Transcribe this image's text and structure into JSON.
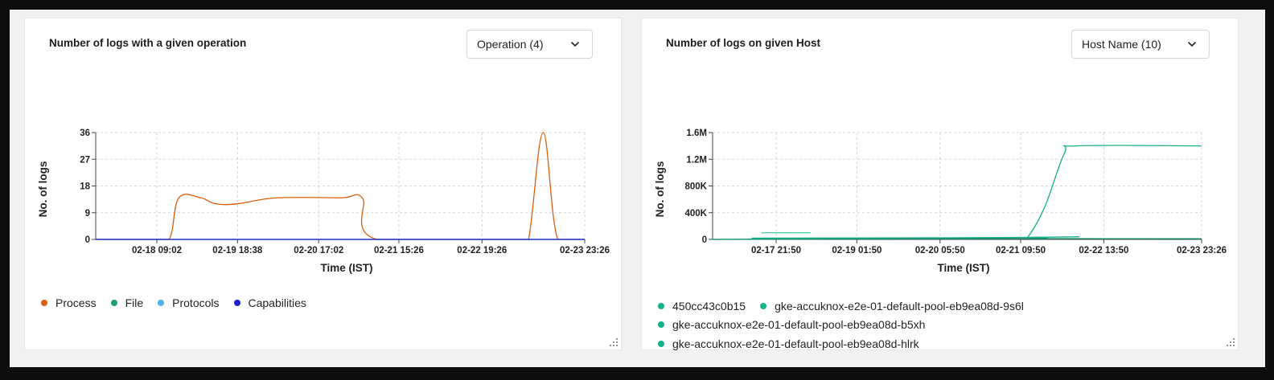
{
  "left_panel": {
    "title": "Number of logs with a given operation",
    "dropdown_label": "Operation (4)",
    "legend": [
      {
        "name": "Process",
        "color": "#d95f0e"
      },
      {
        "name": "File",
        "color": "#1a9e76"
      },
      {
        "name": "Protocols",
        "color": "#4db3e6"
      },
      {
        "name": "Capabilities",
        "color": "#2020d0"
      }
    ]
  },
  "right_panel": {
    "title": "Number of logs on given Host",
    "dropdown_label": "Host Name (10)",
    "legend": [
      {
        "name": "450cc43c0b15",
        "color": "#17b28a"
      },
      {
        "name": "gke-accuknox-e2e-01-default-pool-eb9ea08d-9s6l",
        "color": "#17b28a"
      },
      {
        "name": "gke-accuknox-e2e-01-default-pool-eb9ea08d-b5xh",
        "color": "#17b28a"
      },
      {
        "name": "gke-accuknox-e2e-01-default-pool-eb9ea08d-hlrk",
        "color": "#17b28a"
      }
    ]
  },
  "chart_data": [
    {
      "type": "line",
      "title": "Number of logs with a given operation",
      "xlabel": "Time (IST)",
      "ylabel": "No. of logs",
      "ylim": [
        0,
        36
      ],
      "y_ticks": [
        "0",
        "9",
        "18",
        "27",
        "36"
      ],
      "x_ticks": [
        "02-18 09:02",
        "02-19 18:38",
        "02-20 17:02",
        "02-21 15:26",
        "02-22 19:26",
        "02-23 23:26"
      ],
      "grid": true,
      "legend_position": "bottom-left",
      "series": [
        {
          "name": "Process",
          "color": "#d95f0e",
          "points": [
            [
              0.0,
              0
            ],
            [
              0.11,
              0
            ],
            [
              0.15,
              0
            ],
            [
              0.17,
              14
            ],
            [
              0.215,
              14
            ],
            [
              0.245,
              12
            ],
            [
              0.29,
              12
            ],
            [
              0.37,
              14
            ],
            [
              0.5,
              14
            ],
            [
              0.545,
              14
            ],
            [
              0.575,
              0
            ],
            [
              0.86,
              0
            ],
            [
              0.885,
              0
            ],
            [
              0.915,
              36
            ],
            [
              0.945,
              0
            ],
            [
              1.0,
              0
            ]
          ]
        },
        {
          "name": "File",
          "color": "#1a9e76",
          "points": [
            [
              0,
              0
            ],
            [
              1,
              0
            ]
          ]
        },
        {
          "name": "Protocols",
          "color": "#4db3e6",
          "points": [
            [
              0,
              0
            ],
            [
              1,
              0
            ]
          ]
        },
        {
          "name": "Capabilities",
          "color": "#2020d0",
          "points": [
            [
              0,
              0
            ],
            [
              1,
              0
            ]
          ]
        }
      ]
    },
    {
      "type": "line",
      "title": "Number of logs on given Host",
      "xlabel": "Time (IST)",
      "ylabel": "No. of logs",
      "ylim": [
        0,
        1600000
      ],
      "y_ticks": [
        "0",
        "400K",
        "800K",
        "1.2M",
        "1.6M"
      ],
      "x_ticks": [
        "02-17 21:50",
        "02-19 01:50",
        "02-20 05:50",
        "02-21 09:50",
        "02-22 13:50",
        "02-23 23:26"
      ],
      "grid": true,
      "legend_position": "bottom-left",
      "series": [
        {
          "name": "450cc43c0b15",
          "color": "#17b28a",
          "points": [
            [
              0.0,
              0
            ],
            [
              0.63,
              30000
            ],
            [
              0.645,
              40000
            ],
            [
              0.68,
              500000
            ],
            [
              0.72,
              1300000
            ],
            [
              0.745,
              1400000
            ],
            [
              1.0,
              1400000
            ]
          ]
        },
        {
          "name": "gke-accuknox-e2e-01-default-pool-eb9ea08d-9s6l",
          "color": "#4fd1a8",
          "points": [
            [
              0.1,
              100000
            ],
            [
              0.2,
              100000
            ]
          ]
        },
        {
          "name": "gke-accuknox-e2e-01-default-pool-eb9ea08d-b5xh",
          "color": "#17b28a",
          "points": [
            [
              0.08,
              20000
            ],
            [
              0.55,
              25000
            ],
            [
              0.75,
              40000
            ]
          ]
        },
        {
          "name": "gke-accuknox-e2e-01-default-pool-eb9ea08d-hlrk",
          "color": "#0e8f6e",
          "points": [
            [
              0.0,
              0
            ],
            [
              0.6,
              12000
            ],
            [
              1.0,
              10000
            ]
          ]
        }
      ]
    }
  ]
}
